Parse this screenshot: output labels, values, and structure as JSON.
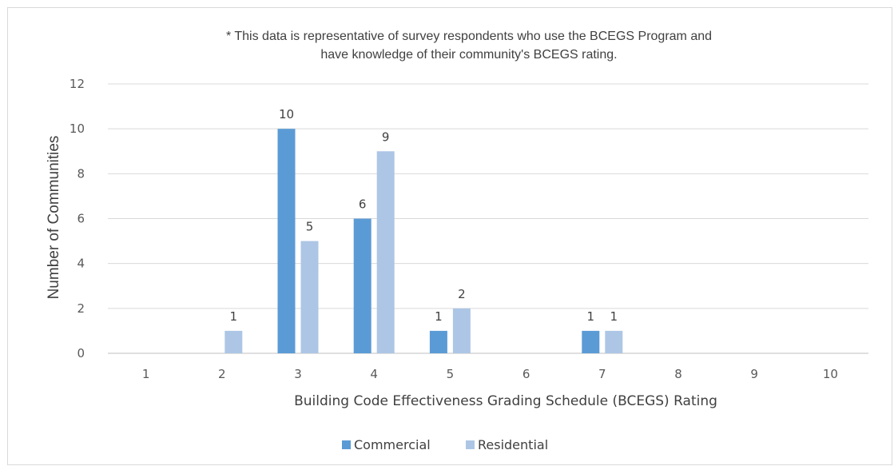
{
  "chart_data": {
    "type": "bar",
    "title": "",
    "note": [
      "* This data is representative of survey respondents who use the BCEGS Program and",
      "have knowledge of their community's BCEGS rating."
    ],
    "xlabel": "Building Code Effectiveness Grading Schedule (BCEGS) Rating",
    "ylabel": "Number of Communities",
    "categories": [
      "1",
      "2",
      "3",
      "4",
      "5",
      "6",
      "7",
      "8",
      "9",
      "10"
    ],
    "series": [
      {
        "name": "Commercial",
        "color": "#5b9bd5",
        "values": [
          null,
          null,
          10,
          6,
          1,
          null,
          1,
          null,
          null,
          null
        ]
      },
      {
        "name": "Residential",
        "color": "#adc6e5",
        "values": [
          null,
          1,
          5,
          9,
          2,
          null,
          1,
          null,
          null,
          null
        ]
      }
    ],
    "ylim": [
      0,
      12
    ],
    "yticks": [
      0,
      2,
      4,
      6,
      8,
      10,
      12
    ],
    "grid": true,
    "legend": "bottom"
  }
}
